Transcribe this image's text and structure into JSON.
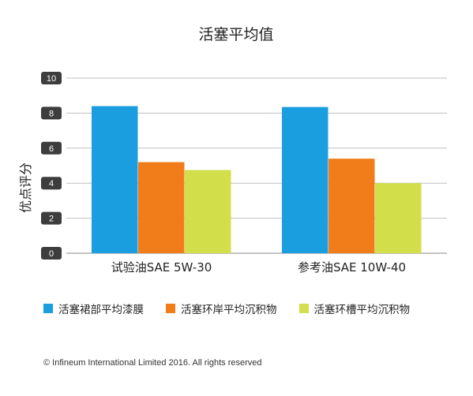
{
  "chart_data": {
    "type": "bar",
    "title": "活塞平均值",
    "ylabel": "优点评分",
    "xlabel": "",
    "categories": [
      "试验油SAE 5W-30",
      "参考油SAE 10W-40"
    ],
    "series": [
      {
        "name": "活塞裙部平均漆膜",
        "color": "#1a9ee0",
        "values": [
          8.4,
          8.35
        ]
      },
      {
        "name": "活塞环岸平均沉积物",
        "color": "#f07d1a",
        "values": [
          5.2,
          5.4
        ]
      },
      {
        "name": "活塞环槽平均沉积物",
        "color": "#d2de4a",
        "values": [
          4.75,
          4.0
        ]
      }
    ],
    "ylim": [
      0,
      10
    ],
    "yticks": [
      "0",
      "2",
      "4",
      "6",
      "8",
      "10"
    ],
    "grid": true,
    "legend": "bottom"
  },
  "copyright": "© Infineum International Limited 2016. All rights reserved",
  "colors": {
    "axis_badge": "#3d3d3d",
    "grid": "#bfbfbf"
  }
}
